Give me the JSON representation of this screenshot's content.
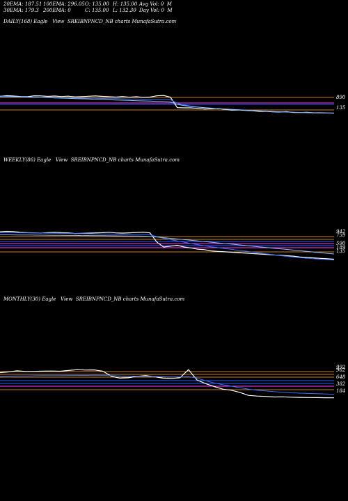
{
  "header": {
    "ema20": "20EMA: 187.51",
    "ema100": "100EMA: 296.05",
    "open": "O: 135.00",
    "high": "H: 135.00",
    "avgvol": "Avg Vol: 0  M",
    "ema30": "30EMA: 179.3",
    "ema200": "200EMA: 0",
    "close": "C: 135.00",
    "low": "L: 132.30",
    "dayvol": "Day Vol: 0  M"
  },
  "chart_data": [
    {
      "type": "line",
      "title": "DAILY(168) Eagle   View  SREIBNPNCD_NB charts MunafaSutra.com",
      "price_labels": [
        "890",
        "135"
      ],
      "colors": {
        "price": "#ffffff",
        "ema_a": "#3b6fff",
        "ema_b": "#8fc1ff",
        "level_orange": "#c87f1e",
        "level_magenta": "#ff3dff",
        "level_blue": "#2a5cff"
      },
      "series": [
        {
          "values": [
            820,
            825,
            822,
            818,
            816,
            824,
            823,
            819,
            822,
            818,
            821,
            815,
            817,
            820,
            823,
            819,
            816,
            813,
            818,
            812,
            816,
            810,
            813,
            824,
            827,
            812,
            722,
            720,
            720,
            716,
            710,
            712,
            715,
            706,
            700,
            702,
            698,
            695,
            690,
            690,
            686,
            684,
            688,
            680,
            680,
            682,
            678,
            678,
            676,
            675
          ]
        },
        {
          "values": [
            815,
            815,
            814,
            813,
            812,
            811,
            810,
            809,
            808,
            807,
            806,
            805,
            804,
            803,
            802,
            801,
            800,
            799,
            798,
            797,
            796,
            795,
            794,
            793,
            792,
            790,
            760,
            745,
            735,
            728,
            722,
            718,
            714,
            710,
            707,
            704,
            701,
            698,
            695,
            692,
            689,
            687,
            685,
            683,
            681,
            679,
            678,
            677,
            676,
            675
          ]
        },
        {
          "values": [
            822,
            820,
            818,
            816,
            814,
            812,
            810,
            808,
            806,
            804,
            802,
            800,
            798,
            796,
            794,
            792,
            790,
            788,
            786,
            784,
            782,
            780,
            778,
            776,
            774,
            770,
            750,
            740,
            732,
            726,
            721,
            717,
            713,
            709,
            706,
            703,
            700,
            697,
            694,
            691,
            688,
            686,
            684,
            682,
            680,
            678,
            677,
            676,
            675,
            674
          ]
        }
      ]
    },
    {
      "type": "line",
      "title": "WEEKLY(86) Eagle   View  SREIBNPNCD_NB charts MunafaSutra.com",
      "price_labels": [
        "942",
        "759",
        "590",
        "189",
        "135"
      ],
      "series": [
        {
          "values": [
            870,
            880,
            875,
            860,
            850,
            845,
            840,
            852,
            860,
            850,
            845,
            830,
            835,
            840,
            845,
            850,
            860,
            845,
            840,
            846,
            855,
            862,
            845,
            635,
            520,
            540,
            560,
            520,
            500,
            470,
            460,
            430,
            420,
            410,
            400,
            390,
            380,
            370,
            360,
            350,
            340,
            330,
            320,
            310,
            290,
            280,
            270,
            260,
            250,
            240
          ]
        },
        {
          "values": [
            850,
            850,
            848,
            846,
            844,
            842,
            840,
            838,
            836,
            834,
            832,
            830,
            828,
            826,
            824,
            822,
            820,
            818,
            816,
            814,
            812,
            810,
            800,
            760,
            720,
            690,
            660,
            630,
            600,
            575,
            550,
            525,
            505,
            485,
            465,
            445,
            425,
            405,
            385,
            365,
            345,
            325,
            305,
            290,
            275,
            262,
            250,
            240,
            230,
            220
          ]
        },
        {
          "values": [
            800,
            800,
            798,
            797,
            795,
            794,
            792,
            791,
            789,
            788,
            786,
            785,
            783,
            782,
            780,
            779,
            777,
            776,
            774,
            773,
            771,
            770,
            765,
            750,
            735,
            720,
            705,
            690,
            675,
            660,
            645,
            630,
            615,
            600,
            585,
            570,
            555,
            540,
            525,
            510,
            495,
            480,
            465,
            450,
            435,
            420,
            405,
            390,
            375,
            360
          ]
        }
      ]
    },
    {
      "type": "line",
      "title": "MONTHLY(30) Eagle   View  SREIBNPNCD_NB charts MunafaSutra.com",
      "price_labels": [
        "992",
        "962",
        "648",
        "382",
        "184"
      ],
      "series": [
        {
          "values": [
            800,
            820,
            850,
            830,
            835,
            840,
            845,
            838,
            860,
            880,
            870,
            875,
            840,
            700,
            650,
            660,
            700,
            720,
            690,
            650,
            640,
            660,
            880,
            600,
            500,
            420,
            350,
            320,
            260,
            180,
            160,
            150,
            135,
            140,
            130,
            125,
            120,
            118,
            115,
            112
          ]
        },
        {
          "values": [
            700,
            705,
            710,
            712,
            715,
            718,
            720,
            720,
            722,
            724,
            725,
            726,
            725,
            720,
            712,
            705,
            700,
            698,
            695,
            690,
            685,
            683,
            690,
            650,
            580,
            520,
            470,
            430,
            390,
            350,
            320,
            300,
            280,
            265,
            250,
            240,
            232,
            225,
            218,
            212
          ]
        }
      ]
    }
  ]
}
